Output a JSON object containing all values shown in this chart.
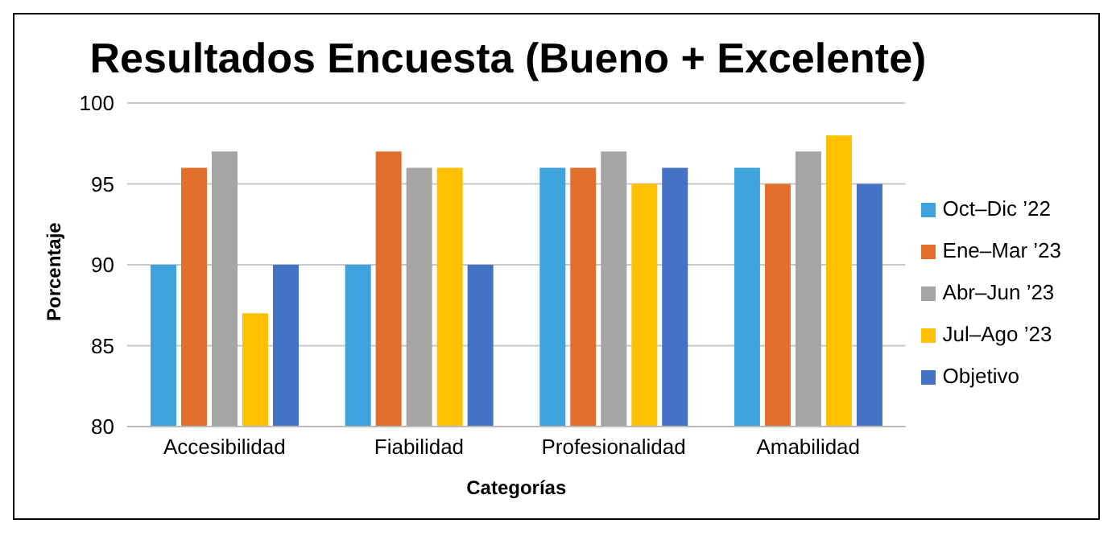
{
  "chart_data": {
    "type": "bar",
    "title": "Resultados Encuesta (Bueno + Excelente)",
    "xlabel": "Categorías",
    "ylabel": "Porcentaje",
    "categories": [
      "Accesibilidad",
      "Fiabilidad",
      "Profesionalidad",
      "Amabilidad"
    ],
    "series": [
      {
        "name": "Oct–Dic ’22",
        "color": "#3fa3de",
        "values": [
          90,
          90,
          96,
          96
        ]
      },
      {
        "name": "Ene–Mar ’23",
        "color": "#e2702c",
        "values": [
          96,
          97,
          96,
          95
        ]
      },
      {
        "name": "Abr–Jun ’23",
        "color": "#a5a5a5",
        "values": [
          97,
          96,
          97,
          97
        ]
      },
      {
        "name": "Jul–Ago ’23",
        "color": "#ffc000",
        "values": [
          87,
          96,
          95,
          98
        ]
      },
      {
        "name": "Objetivo",
        "color": "#4472c4",
        "values": [
          90,
          90,
          96,
          95
        ]
      }
    ],
    "ylim": [
      80,
      100
    ],
    "yticks": [
      80,
      85,
      90,
      95,
      100
    ],
    "grid": "y",
    "legend": "right"
  }
}
